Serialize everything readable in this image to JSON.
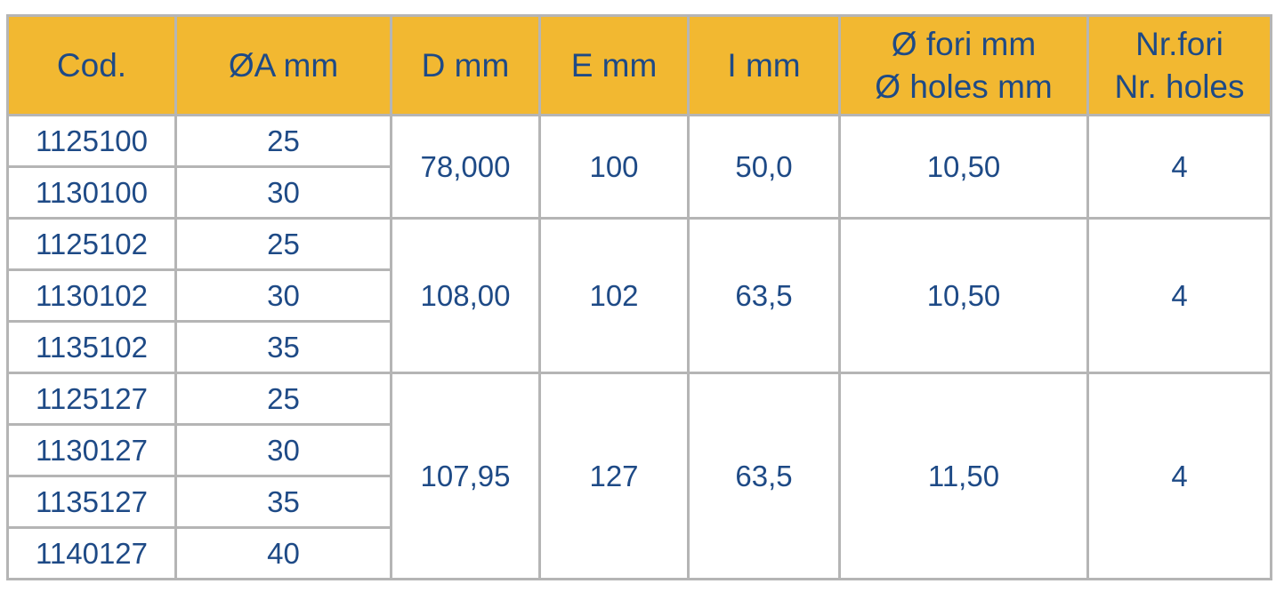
{
  "colors": {
    "header_bg": "#f2b831",
    "text": "#1e4a86",
    "border": "#b5b5b5"
  },
  "headers": [
    {
      "line1": "Cod.",
      "line2": ""
    },
    {
      "line1": "ØA mm",
      "line2": ""
    },
    {
      "line1": "D mm",
      "line2": ""
    },
    {
      "line1": "E mm",
      "line2": ""
    },
    {
      "line1": "I mm",
      "line2": ""
    },
    {
      "line1": "Ø fori mm",
      "line2": "Ø holes mm"
    },
    {
      "line1": "Nr.fori",
      "line2": "Nr. holes"
    }
  ],
  "groups": [
    {
      "d": "78,000",
      "e": "100",
      "i": "50,0",
      "holes_dia": "10,50",
      "holes_nr": "4",
      "rows": [
        {
          "cod": "1125100",
          "a": "25"
        },
        {
          "cod": "1130100",
          "a": "30"
        }
      ]
    },
    {
      "d": "108,00",
      "e": "102",
      "i": "63,5",
      "holes_dia": "10,50",
      "holes_nr": "4",
      "rows": [
        {
          "cod": "1125102",
          "a": "25"
        },
        {
          "cod": "1130102",
          "a": "30"
        },
        {
          "cod": "1135102",
          "a": "35"
        }
      ]
    },
    {
      "d": "107,95",
      "e": "127",
      "i": "63,5",
      "holes_dia": "11,50",
      "holes_nr": "4",
      "rows": [
        {
          "cod": "1125127",
          "a": "25"
        },
        {
          "cod": "1130127",
          "a": "30"
        },
        {
          "cod": "1135127",
          "a": "35"
        },
        {
          "cod": "1140127",
          "a": "40"
        }
      ]
    }
  ]
}
